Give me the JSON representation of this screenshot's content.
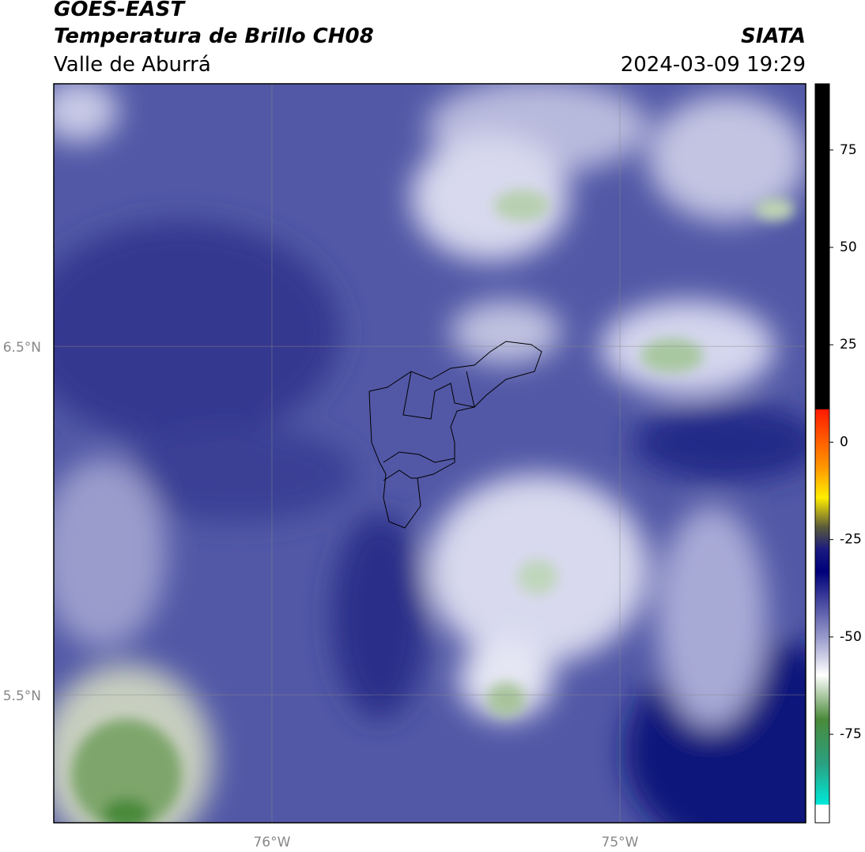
{
  "header": {
    "title": "GOES-EAST",
    "subtitle": "Temperatura de Brillo CH08",
    "region": "Valle de Aburrá",
    "source": "SIATA",
    "datetime": "2024-03-09 19:29"
  },
  "map": {
    "lonlim": [
      -76.627,
      -74.466
    ],
    "latlim": [
      5.133,
      7.253
    ],
    "lon_ticks": [
      {
        "value": -76,
        "label": "76°W"
      },
      {
        "value": -75,
        "label": "75°W"
      }
    ],
    "lat_ticks": [
      {
        "value": 6.5,
        "label": "6.5°N"
      },
      {
        "value": 5.5,
        "label": "5.5°N"
      }
    ]
  },
  "colorbar": {
    "lim": [
      -97.7,
      92
    ],
    "ticks": [
      75,
      50,
      25,
      0,
      -25,
      -50,
      -75
    ]
  }
}
